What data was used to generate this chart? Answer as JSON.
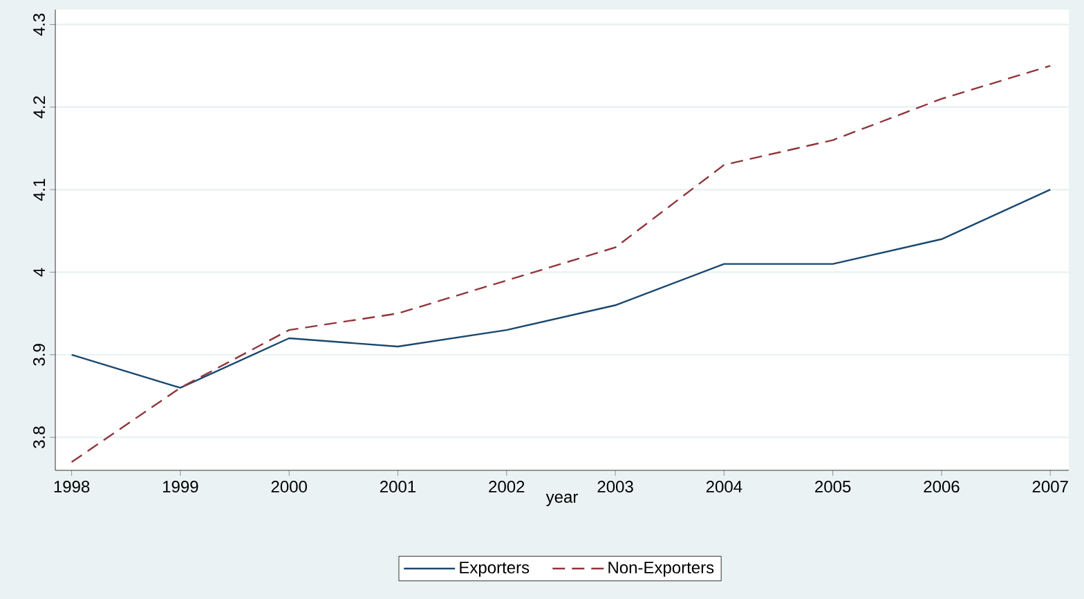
{
  "chart_data": {
    "type": "line",
    "xlabel": "year",
    "x": [
      1998,
      1999,
      2000,
      2001,
      2002,
      2003,
      2004,
      2005,
      2006,
      2007
    ],
    "series": [
      {
        "name": "Exporters",
        "color": "#1a476f",
        "line_style": "solid",
        "values": [
          3.9,
          3.86,
          3.92,
          3.91,
          3.93,
          3.96,
          4.01,
          4.01,
          4.04,
          4.1
        ]
      },
      {
        "name": "Non-Exporters",
        "color": "#90353b",
        "line_style": "dashed",
        "values": [
          3.77,
          3.86,
          3.93,
          3.95,
          3.99,
          4.03,
          4.13,
          4.16,
          4.21,
          4.25
        ]
      }
    ],
    "xlim": [
      1997.85,
      2007.17
    ],
    "ylim": [
      3.76,
      4.318
    ],
    "xticks": [
      1998,
      1999,
      2000,
      2001,
      2002,
      2003,
      2004,
      2005,
      2006,
      2007
    ],
    "yticks": [
      3.8,
      3.9,
      4,
      4.1,
      4.2,
      4.3
    ],
    "grid": "y",
    "legend": "bottom"
  }
}
